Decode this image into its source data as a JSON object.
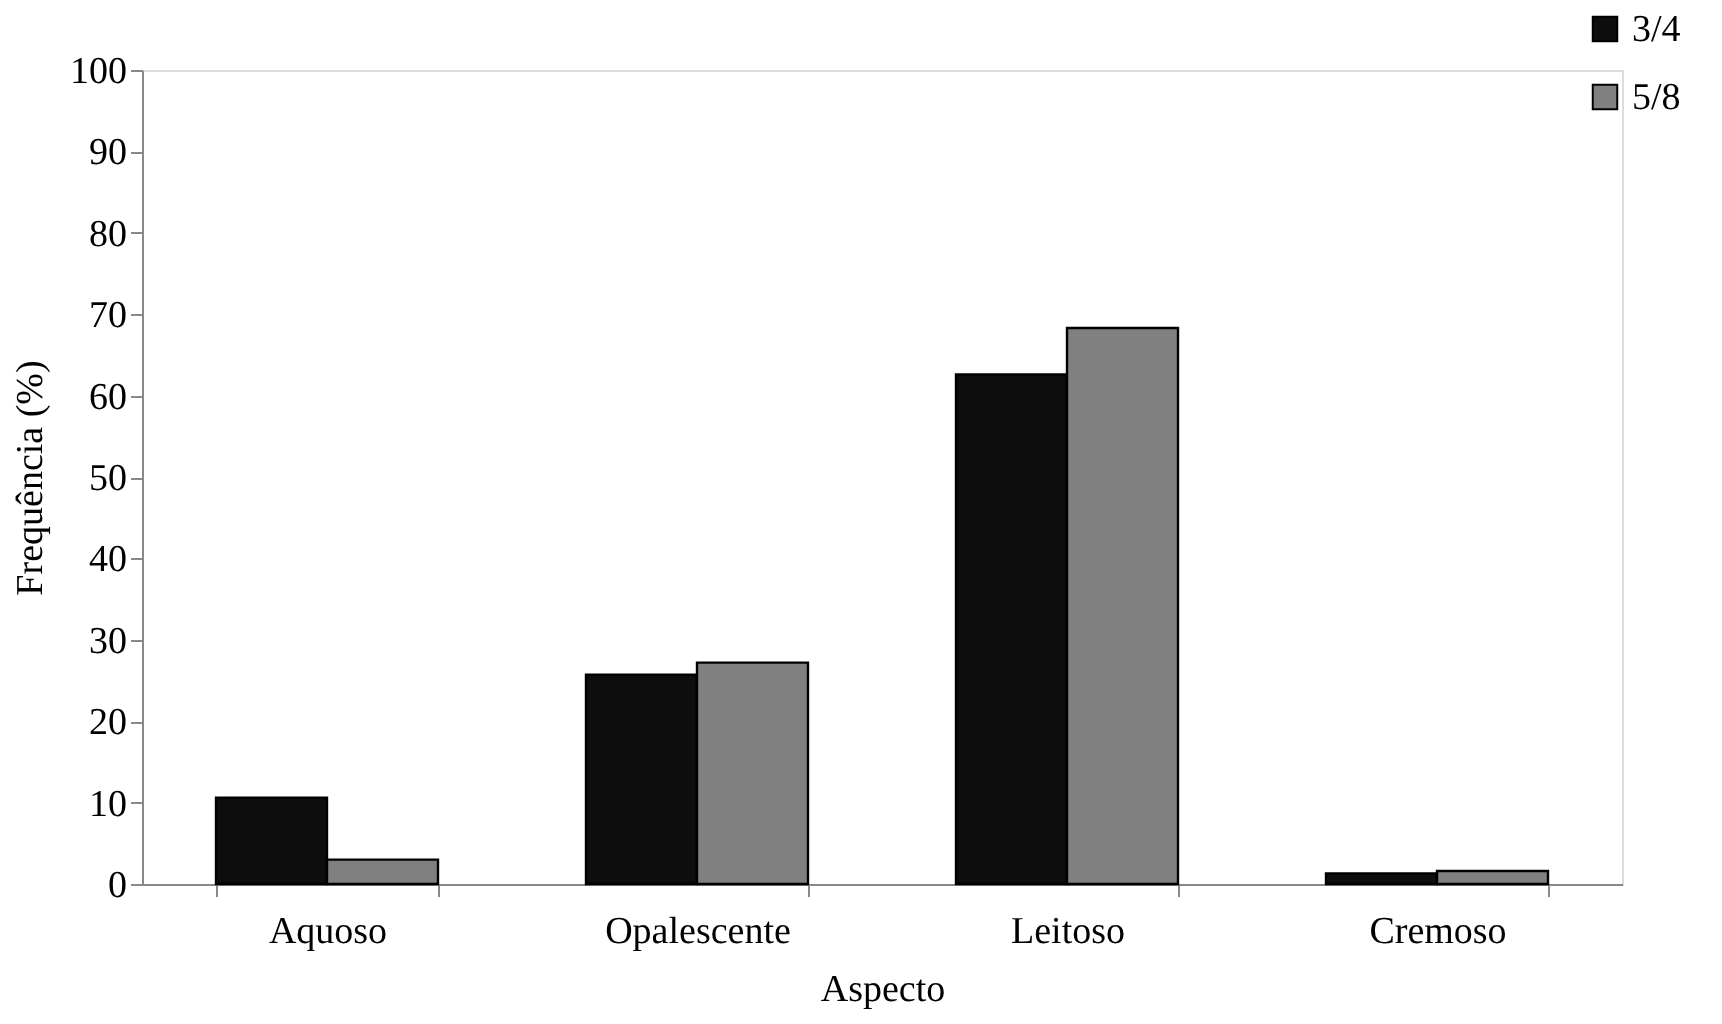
{
  "chart_data": {
    "type": "bar",
    "xlabel": "Aspecto",
    "ylabel": "Frequência (%)",
    "categories": [
      "Aquoso",
      "Opalescente",
      "Leitoso",
      "Cremoso"
    ],
    "series": [
      {
        "name": "3/4",
        "color": "#0d0d0d",
        "values": [
          10.6,
          25.7,
          62.6,
          1.3
        ]
      },
      {
        "name": "5/8",
        "color": "#808080",
        "values": [
          3.0,
          27.2,
          68.3,
          1.6
        ]
      }
    ],
    "ylim": [
      0,
      100
    ],
    "yticks": [
      0,
      10,
      20,
      30,
      40,
      50,
      60,
      70,
      80,
      90,
      100
    ],
    "grid": false,
    "legend": "top right"
  }
}
